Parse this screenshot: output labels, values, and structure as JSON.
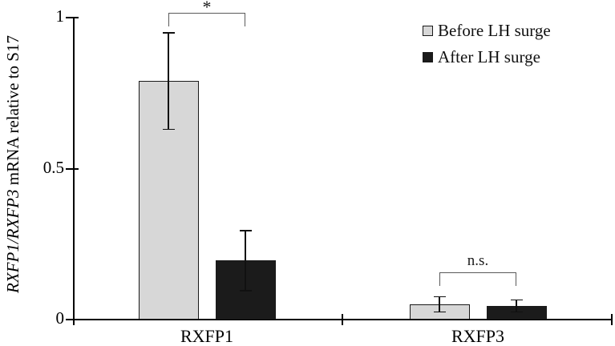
{
  "chart_data": {
    "type": "bar",
    "title": "",
    "ylabel_italic": "RXFP1/RXFP3",
    "ylabel_rest": " mRNA relative to S17",
    "xlabel": "",
    "categories": [
      "RXFP1",
      "RXFP3"
    ],
    "series": [
      {
        "name": "Before LH surge",
        "color": "#d7d7d7",
        "values": [
          0.79,
          0.05
        ],
        "errors": [
          0.16,
          0.025
        ]
      },
      {
        "name": "After LH surge",
        "color": "#1b1b1b",
        "values": [
          0.195,
          0.045
        ],
        "errors": [
          0.1,
          0.02
        ]
      }
    ],
    "y_ticks": [
      "0",
      "0.5",
      "1"
    ],
    "y_tick_values": [
      0,
      0.5,
      1
    ],
    "ylim": [
      0,
      1
    ],
    "grid": false,
    "legend_position": "top-right",
    "annotations": [
      {
        "group": "RXFP1",
        "label": "*"
      },
      {
        "group": "RXFP3",
        "label": "n.s."
      }
    ],
    "colors": {
      "axis": "#000000",
      "bracket": "#5a5a5a",
      "error_bar": "#111111"
    }
  }
}
